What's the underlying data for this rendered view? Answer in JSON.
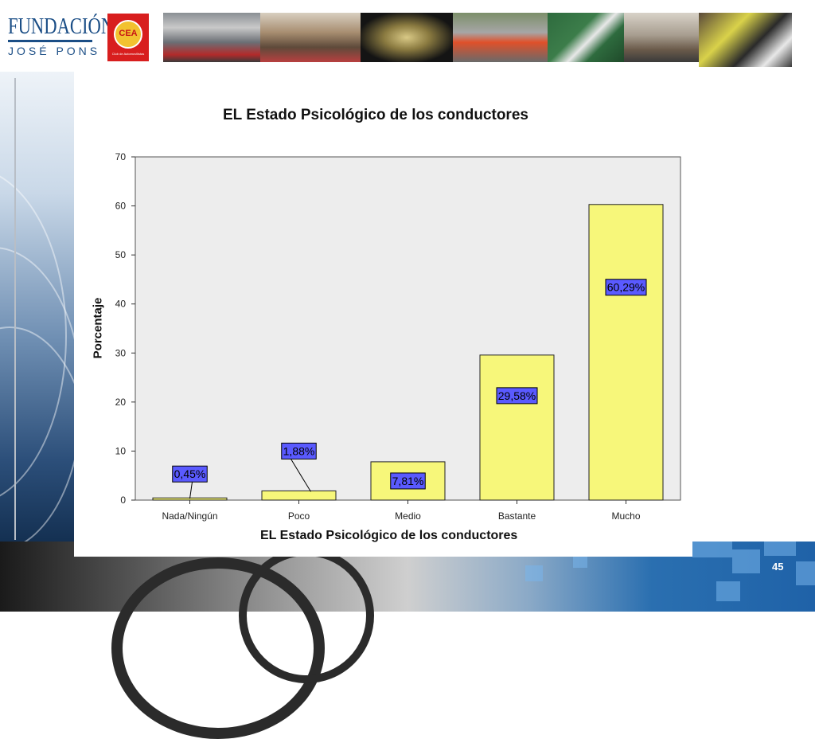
{
  "header": {
    "logo_line1": "FUNDACIÓN",
    "logo_line2": "JOSÉ PONS",
    "cea_text": "CEA",
    "cea_subtext": "Club de Automovilistas"
  },
  "footer": {
    "page_number": "45"
  },
  "chart_data": {
    "type": "bar",
    "title": "EL Estado Psicológico de los conductores",
    "xlabel": "EL Estado Psicológico de los conductores",
    "ylabel": "Porcentaje",
    "categories": [
      "Nada/Ningún",
      "Poco",
      "Medio",
      "Bastante",
      "Mucho"
    ],
    "values": [
      0.45,
      1.88,
      7.81,
      29.58,
      60.29
    ],
    "data_labels": [
      "0,45%",
      "1,88%",
      "7,81%",
      "29,58%",
      "60,29%"
    ],
    "ylim": [
      0,
      70
    ],
    "yticks": [
      0,
      10,
      20,
      30,
      40,
      50,
      60,
      70
    ],
    "grid": false,
    "colors": {
      "bar": "#f7f77a",
      "plot_bg": "#ededed",
      "label_box": "#5a5aff"
    }
  }
}
